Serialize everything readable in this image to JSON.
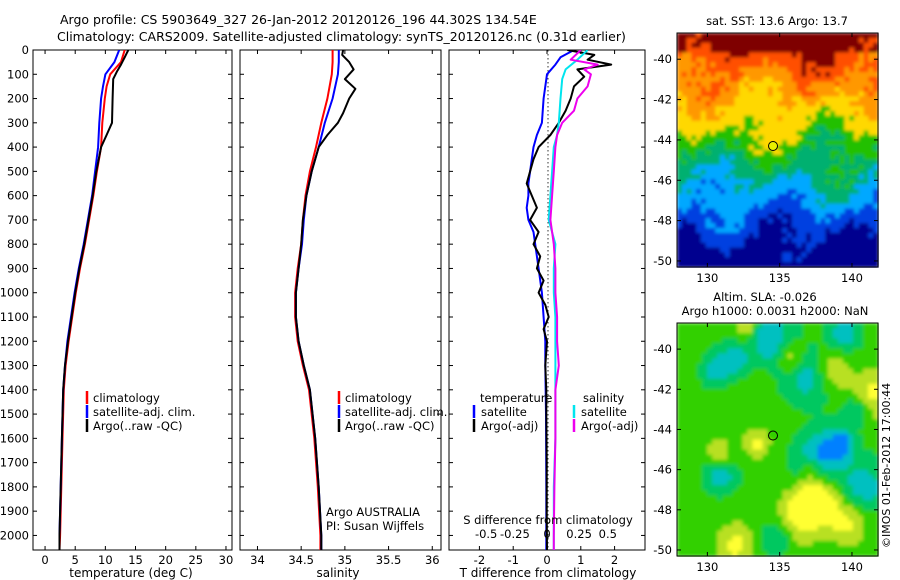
{
  "header": {
    "line1": "Argo profile: CS 5903649_327 26-Jan-2012 20120126_196 44.302S 134.54E",
    "line2": "Climatology: CARS2009. Satellite-adjusted climatology: synTS_20120126.nc (0.31d earlier)"
  },
  "chart_data": [
    {
      "type": "line",
      "xlabel": "temperature (deg C)",
      "ylabel": "",
      "xlim": [
        -2,
        31
      ],
      "ylim": [
        0,
        2060
      ],
      "x_ticks": [
        0,
        5,
        10,
        15,
        20,
        25,
        30
      ],
      "y_ticks": [
        0,
        100,
        200,
        300,
        400,
        500,
        600,
        700,
        800,
        900,
        1000,
        1100,
        1200,
        1300,
        1400,
        1500,
        1600,
        1700,
        1800,
        1900,
        2000
      ],
      "legend": [
        "climatology",
        "satellite-adj. clim.",
        "Argo(..raw -QC)"
      ],
      "series": [
        {
          "name": "climatology",
          "color": "#ff0000",
          "depth": [
            0,
            50,
            100,
            150,
            200,
            300,
            400,
            500,
            600,
            700,
            800,
            900,
            1000,
            1100,
            1200,
            1300,
            1400,
            1600,
            1800,
            2000,
            2060
          ],
          "values": [
            13.2,
            12.6,
            10.8,
            10.2,
            9.9,
            9.5,
            9.3,
            8.6,
            8.0,
            7.3,
            6.6,
            5.8,
            5.1,
            4.5,
            3.9,
            3.4,
            3.1,
            2.9,
            2.7,
            2.5,
            2.4
          ]
        },
        {
          "name": "satellite-adj. clim.",
          "color": "#0000ff",
          "depth": [
            0,
            50,
            100,
            150,
            200,
            300,
            400,
            500,
            600,
            700,
            800,
            900,
            1000,
            1100,
            1200,
            1300,
            1400,
            1600,
            1800,
            2000,
            2060
          ],
          "values": [
            12.3,
            11.5,
            10.0,
            9.6,
            9.3,
            9.0,
            8.8,
            8.3,
            7.8,
            7.1,
            6.4,
            5.6,
            4.9,
            4.3,
            3.7,
            3.3,
            3.0,
            2.8,
            2.6,
            2.4,
            2.4
          ]
        },
        {
          "name": "Argo(..raw -QC)",
          "color": "#000000",
          "depth": [
            0,
            30,
            60,
            90,
            120,
            200,
            300,
            350,
            400,
            500,
            600,
            700,
            800,
            900,
            1000,
            1100,
            1200,
            1300,
            1400,
            1600,
            1800,
            2000,
            2060
          ],
          "values": [
            13.8,
            13.2,
            12.6,
            11.9,
            11.3,
            11.2,
            11.1,
            10.2,
            9.3,
            8.5,
            7.9,
            7.2,
            6.5,
            5.7,
            5.0,
            4.4,
            3.8,
            3.3,
            3.0,
            2.8,
            2.6,
            2.4,
            2.4
          ]
        }
      ]
    },
    {
      "type": "line",
      "xlabel": "salinity",
      "ylabel": "",
      "xlim": [
        33.8,
        36.1
      ],
      "ylim": [
        0,
        2060
      ],
      "x_ticks": [
        34,
        34.5,
        35,
        35.5,
        36
      ],
      "legend": [
        "climatology",
        "satellite-adj. clim.",
        "Argo(..raw -QC)"
      ],
      "annotation": [
        "Argo AUSTRALIA",
        "PI: Susan Wijffels"
      ],
      "series": [
        {
          "name": "climatology",
          "color": "#ff0000",
          "depth": [
            0,
            50,
            100,
            200,
            300,
            400,
            500,
            600,
            700,
            800,
            900,
            1000,
            1100,
            1200,
            1300,
            1400,
            1600,
            1800,
            2000,
            2060
          ],
          "values": [
            34.86,
            34.86,
            34.85,
            34.8,
            34.73,
            34.67,
            34.6,
            34.55,
            34.52,
            34.5,
            34.46,
            34.43,
            34.43,
            34.46,
            34.52,
            34.59,
            34.65,
            34.69,
            34.72,
            34.72
          ]
        },
        {
          "name": "satellite-adj. clim.",
          "color": "#0000ff",
          "depth": [
            0,
            50,
            100,
            200,
            300,
            400,
            500,
            600,
            700,
            800,
            900,
            1000,
            1100,
            1200,
            1300,
            1400,
            1600,
            1800,
            2000,
            2060
          ],
          "values": [
            34.93,
            34.93,
            34.92,
            34.86,
            34.77,
            34.7,
            34.62,
            34.56,
            34.53,
            34.51,
            34.47,
            34.44,
            34.44,
            34.47,
            34.53,
            34.6,
            34.66,
            34.7,
            34.73,
            34.73
          ]
        },
        {
          "name": "Argo(..raw -QC)",
          "color": "#000000",
          "depth": [
            0,
            20,
            50,
            80,
            120,
            160,
            200,
            260,
            300,
            350,
            400,
            500,
            600,
            700,
            800,
            900,
            1000,
            1100,
            1200,
            1300,
            1400,
            1600,
            1800,
            2000,
            2060
          ],
          "values": [
            34.98,
            34.97,
            35.05,
            35.1,
            35.0,
            35.12,
            35.05,
            34.98,
            34.92,
            34.8,
            34.7,
            34.62,
            34.56,
            34.52,
            34.5,
            34.47,
            34.44,
            34.44,
            34.47,
            34.53,
            34.6,
            34.66,
            34.7,
            34.73,
            34.73
          ]
        }
      ]
    },
    {
      "type": "line",
      "title": "S difference from climatology",
      "xlabel": "T difference from climatology",
      "ylabel": "",
      "xlim": [
        -2.9,
        2.9
      ],
      "ylim": [
        0,
        2060
      ],
      "x_ticks": [
        -2,
        -1,
        0,
        1,
        2
      ],
      "s_tick_labels": [
        "-0.5",
        "-0.25",
        "0",
        "0.25",
        "0.5"
      ],
      "legend_temperature_heading": "temperature",
      "legend_salinity_heading": "salinity",
      "legend": [
        "satellite",
        "Argo(-adj)",
        "satellite",
        "Argo(-adj)"
      ],
      "series": [
        {
          "name": "satellite",
          "color": "#0000ff",
          "depth": [
            0,
            30,
            60,
            100,
            200,
            300,
            350,
            400,
            450,
            500,
            550,
            600,
            650,
            700,
            750,
            800,
            900,
            1000,
            1100,
            1200,
            1300,
            1500,
            1800,
            2060
          ],
          "values": [
            0.8,
            0.4,
            0.25,
            0.0,
            -0.1,
            -0.15,
            -0.3,
            -0.4,
            -0.45,
            -0.5,
            -0.55,
            -0.55,
            -0.6,
            -0.55,
            -0.4,
            -0.35,
            -0.25,
            -0.15,
            -0.1,
            -0.05,
            -0.05,
            -0.03,
            -0.02,
            -0.02
          ]
        },
        {
          "name": "Argo(-adj)",
          "color": "#000000",
          "depth": [
            0,
            20,
            40,
            60,
            80,
            110,
            150,
            200,
            250,
            300,
            350,
            400,
            450,
            500,
            550,
            600,
            650,
            700,
            750,
            800,
            850,
            900,
            950,
            1000,
            1050,
            1100,
            1150,
            1200,
            1300,
            1400,
            1500,
            1700,
            1900,
            2060
          ],
          "values": [
            0.6,
            1.4,
            1.2,
            1.9,
            0.9,
            1.1,
            0.8,
            0.7,
            0.55,
            0.35,
            0.1,
            -0.25,
            -0.4,
            -0.5,
            -0.6,
            -0.45,
            -0.3,
            -0.5,
            -0.25,
            -0.4,
            -0.2,
            -0.3,
            -0.1,
            -0.25,
            -0.05,
            0.05,
            -0.1,
            0.0,
            -0.05,
            -0.02,
            -0.02,
            -0.01,
            -0.01,
            0.0
          ]
        },
        {
          "name": "satellite",
          "color": "#00e5ee",
          "depth": [
            0,
            40,
            80,
            120,
            200,
            300,
            350,
            400,
            500,
            600,
            700,
            800,
            900,
            1000,
            1100,
            1200,
            1300,
            1400,
            1600,
            1800,
            2000,
            2060
          ],
          "values": [
            1.2,
            0.9,
            0.55,
            0.45,
            0.4,
            0.35,
            0.3,
            0.2,
            0.15,
            0.1,
            0.05,
            0.25,
            0.2,
            0.2,
            0.25,
            0.25,
            0.25,
            0.25,
            0.25,
            0.2,
            0.2,
            0.2
          ]
        },
        {
          "name": "Argo(-adj)",
          "color": "#ee00ee",
          "depth": [
            0,
            40,
            60,
            80,
            100,
            150,
            200,
            250,
            300,
            350,
            400,
            500,
            600,
            700,
            800,
            900,
            1000,
            1100,
            1200,
            1300,
            1400,
            1600,
            1800,
            2000,
            2060
          ],
          "values": [
            1.0,
            0.7,
            1.5,
            1.1,
            1.3,
            1.2,
            0.9,
            0.8,
            0.45,
            0.3,
            0.25,
            0.2,
            0.15,
            0.1,
            0.2,
            0.25,
            0.25,
            0.3,
            0.3,
            0.35,
            0.25,
            0.25,
            0.22,
            0.2,
            0.2
          ]
        }
      ]
    },
    {
      "type": "heatmap",
      "title": "sat. SST: 13.6  Argo: 13.7",
      "x_ticks": [
        130,
        135,
        140
      ],
      "y_ticks": [
        -40,
        -42,
        -44,
        -46,
        -48,
        -50
      ],
      "xlim": [
        127.9,
        141.8
      ],
      "ylim": [
        -50.3,
        -38.7
      ],
      "marker": {
        "lon": 134.54,
        "lat": -44.302
      },
      "colors": [
        "#7f0000",
        "#ff5000",
        "#ff9800",
        "#ffd800",
        "#20c000",
        "#00b070",
        "#00a8ff",
        "#0040e0",
        "#00008f"
      ]
    },
    {
      "type": "heatmap",
      "title": "Altim. SLA: -0.026",
      "subtitle": "Argo h1000: 0.0031 h2000: NaN",
      "x_ticks": [
        130,
        135,
        140
      ],
      "y_ticks": [
        -40,
        -42,
        -44,
        -46,
        -48,
        -50
      ],
      "xlim": [
        127.9,
        141.8
      ],
      "ylim": [
        -50.3,
        -38.7
      ],
      "marker": {
        "lon": 134.54,
        "lat": -44.302
      },
      "colors": [
        "#ffff30",
        "#b8e020",
        "#30d000",
        "#00c860",
        "#00c0c0",
        "#0080ff"
      ]
    }
  ],
  "credit": "©IMOS 01-Feb-2012 17:00:44"
}
